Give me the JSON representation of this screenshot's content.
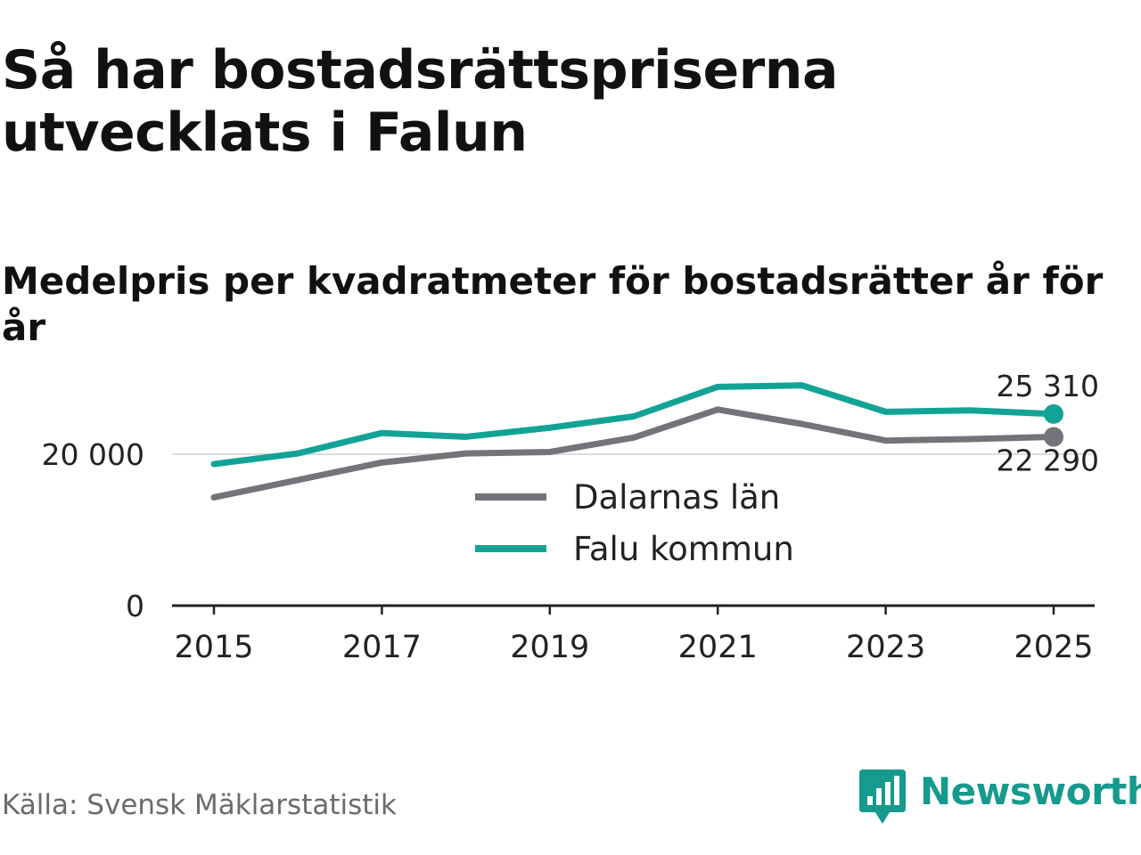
{
  "header": {
    "title": "Så har bostadsrättspriserna utvecklats i Falun",
    "subtitle": "Medelpris per kvadratmeter för bostadsrätter år för år"
  },
  "footer": {
    "source": "Källa: Svensk Mäklarstatistik",
    "brand": "Newsworthy",
    "brand_icon": "bar-chart-speech-bubble-icon"
  },
  "colors": {
    "falu": "#12a396",
    "dalarna": "#757279",
    "grid": "#dcdcdc",
    "axis": "#222222",
    "brand": "#159a8d"
  },
  "chart_data": {
    "type": "line",
    "title": "Medelpris per kvadratmeter för bostadsrätter år för år",
    "xlabel": "",
    "ylabel": "",
    "x": [
      2015,
      2016,
      2017,
      2018,
      2019,
      2020,
      2021,
      2022,
      2023,
      2024,
      2025
    ],
    "x_ticks": [
      2015,
      2017,
      2019,
      2021,
      2023,
      2025
    ],
    "x_tick_labels": [
      "2015",
      "2017",
      "2019",
      "2021",
      "2023",
      "2025"
    ],
    "y_ticks": [
      0,
      20000
    ],
    "y_tick_labels": [
      "0",
      "20 000"
    ],
    "ylim": [
      0,
      30000
    ],
    "grid": true,
    "legend_position": "center",
    "series": [
      {
        "name": "Dalarnas län",
        "color": "#757279",
        "values": [
          14300,
          16600,
          18900,
          20100,
          20300,
          22200,
          25900,
          24000,
          21800,
          22000,
          22290
        ],
        "end_label": "22 290"
      },
      {
        "name": "Falu kommun",
        "color": "#12a396",
        "values": [
          18700,
          20100,
          22800,
          22300,
          23500,
          25000,
          28900,
          29100,
          25600,
          25800,
          25310
        ],
        "end_label": "25 310"
      }
    ]
  }
}
